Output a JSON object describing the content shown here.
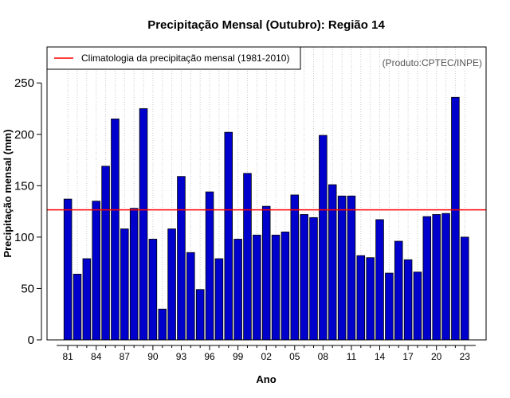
{
  "chart_data": {
    "type": "bar",
    "title": "Precipitação Mensal (Outubro): Região 14",
    "xlabel": "Ano",
    "ylabel": "Precipitação mensal (mm)",
    "ylim": [
      0,
      285
    ],
    "yticks": [
      0,
      50,
      100,
      150,
      200,
      250
    ],
    "x_tick_labels": [
      "81",
      "84",
      "87",
      "90",
      "93",
      "96",
      "99",
      "02",
      "05",
      "08",
      "11",
      "14",
      "17",
      "20",
      "23"
    ],
    "categories": [
      "1981",
      "1982",
      "1983",
      "1984",
      "1985",
      "1986",
      "1987",
      "1988",
      "1989",
      "1990",
      "1991",
      "1992",
      "1993",
      "1994",
      "1995",
      "1996",
      "1997",
      "1998",
      "1999",
      "2000",
      "2001",
      "2002",
      "2003",
      "2004",
      "2005",
      "2006",
      "2007",
      "2008",
      "2009",
      "2010",
      "2011",
      "2012",
      "2013",
      "2014",
      "2015",
      "2016",
      "2017",
      "2018",
      "2019",
      "2020",
      "2021",
      "2022",
      "2023"
    ],
    "values": [
      137,
      64,
      79,
      135,
      169,
      215,
      108,
      128,
      225,
      98,
      30,
      108,
      159,
      85,
      49,
      144,
      79,
      202,
      98,
      162,
      102,
      130,
      102,
      105,
      141,
      122,
      119,
      199,
      151,
      140,
      140,
      82,
      80,
      117,
      65,
      96,
      78,
      66,
      120,
      122,
      123,
      236,
      100
    ],
    "bar_color": "#0000CD",
    "climatology": {
      "label": "Climatologia da precipitação mensal (1981-2010)",
      "value": 126.5,
      "color": "#FF0000"
    },
    "credit": "(Produto:CPTEC/INPE)",
    "grid": "vertical dotted",
    "legend_position": "top-left"
  }
}
